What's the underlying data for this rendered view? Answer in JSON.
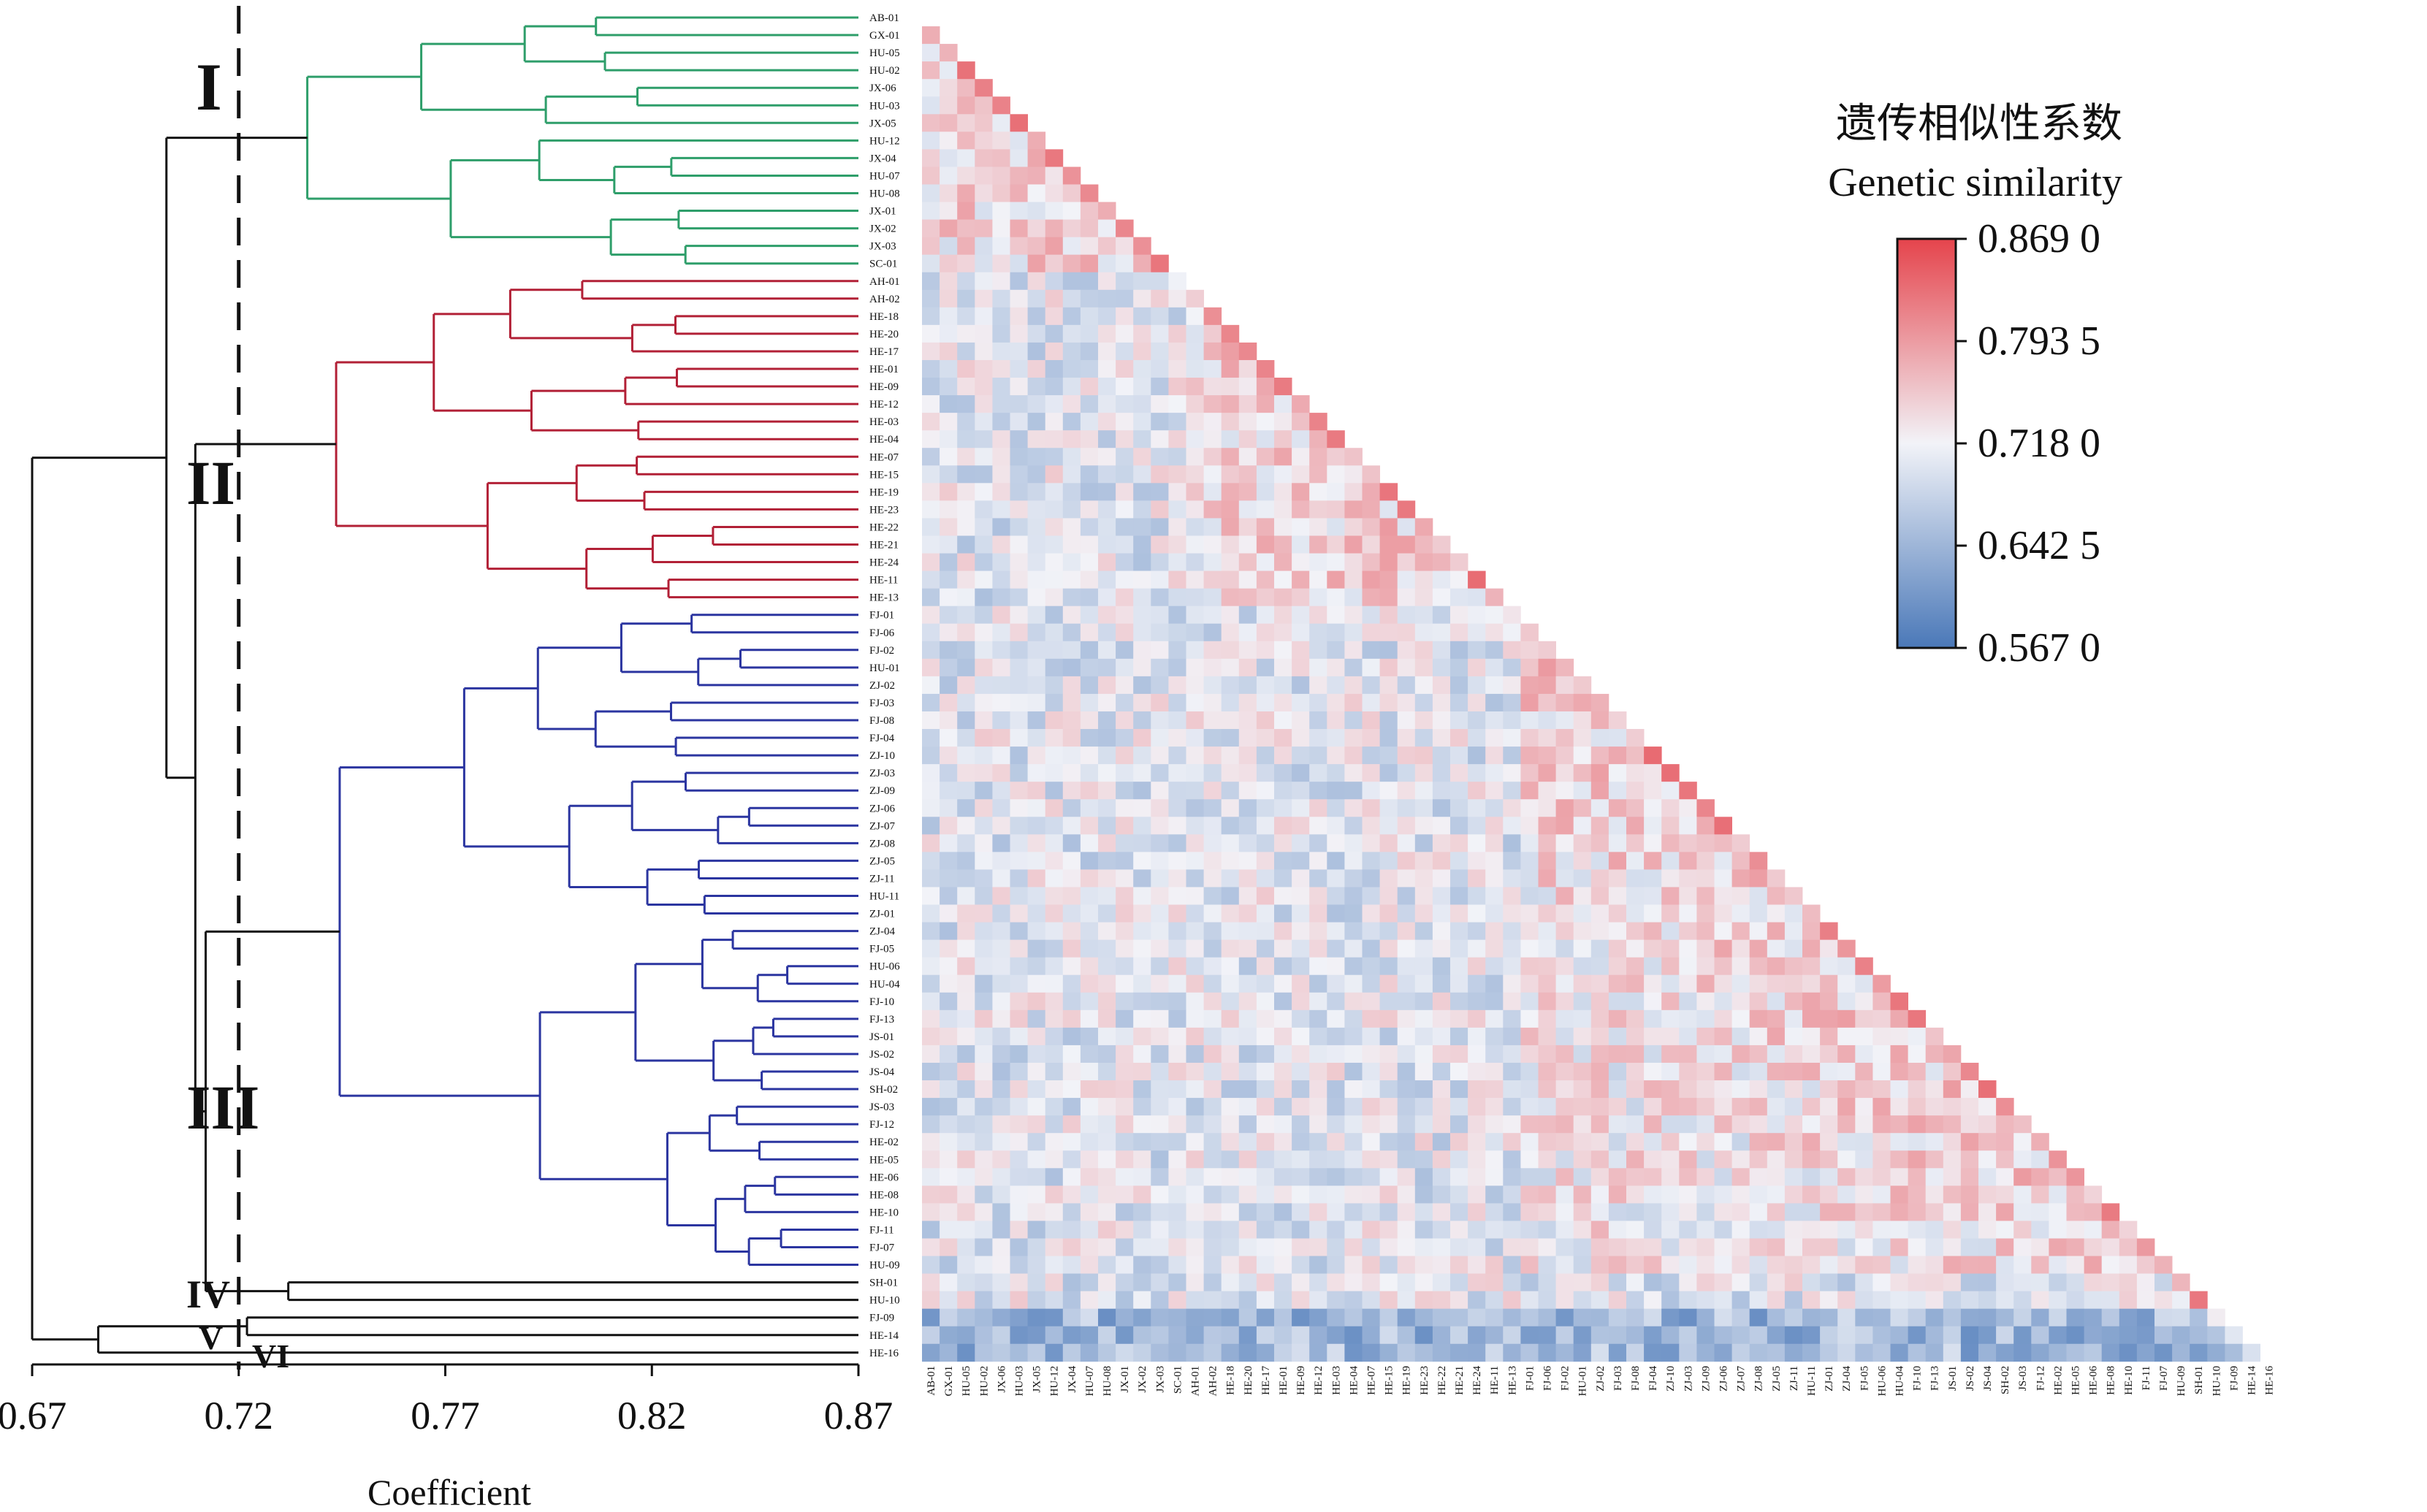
{
  "chart_data": [
    {
      "type": "dendrogram",
      "xlabel": "Coefficient",
      "xlim": [
        0.67,
        0.87
      ],
      "xticks": [
        "0.67",
        "0.72",
        "0.77",
        "0.82",
        "0.87"
      ],
      "cutoff": 0.72,
      "leaves": [
        "AB-01",
        "GX-01",
        "HU-05",
        "HU-02",
        "JX-06",
        "HU-03",
        "JX-05",
        "HU-12",
        "JX-04",
        "HU-07",
        "HU-08",
        "JX-01",
        "JX-02",
        "JX-03",
        "SC-01",
        "AH-01",
        "AH-02",
        "HE-18",
        "HE-20",
        "HE-17",
        "HE-01",
        "HE-09",
        "HE-12",
        "HE-03",
        "HE-04",
        "HE-07",
        "HE-15",
        "HE-19",
        "HE-23",
        "HE-22",
        "HE-21",
        "HE-24",
        "HE-11",
        "HE-13",
        "FJ-01",
        "FJ-06",
        "FJ-02",
        "HU-01",
        "ZJ-02",
        "FJ-03",
        "FJ-08",
        "FJ-04",
        "ZJ-10",
        "ZJ-03",
        "ZJ-09",
        "ZJ-06",
        "ZJ-07",
        "ZJ-08",
        "ZJ-05",
        "ZJ-11",
        "HU-11",
        "ZJ-01",
        "ZJ-04",
        "FJ-05",
        "HU-06",
        "HU-04",
        "FJ-10",
        "FJ-13",
        "JS-01",
        "JS-02",
        "JS-04",
        "SH-02",
        "JS-03",
        "FJ-12",
        "HE-02",
        "HE-05",
        "HE-06",
        "HE-08",
        "HE-10",
        "FJ-11",
        "FJ-07",
        "HU-09",
        "SH-01",
        "HU-10",
        "FJ-09",
        "HE-14",
        "HE-16"
      ],
      "groups": [
        {
          "name": "I",
          "first": 0,
          "last": 14,
          "color": "#2e9e6a"
        },
        {
          "name": "II",
          "first": 15,
          "last": 33,
          "color": "#b22036"
        },
        {
          "name": "III",
          "first": 34,
          "last": 71,
          "color": "#2b35a0"
        },
        {
          "name": "IV",
          "first": 72,
          "last": 73,
          "color": "#111111"
        },
        {
          "name": "V",
          "first": 74,
          "last": 75,
          "color": "#111111"
        },
        {
          "name": "VI",
          "first": 76,
          "last": 76,
          "color": "#111111"
        }
      ]
    },
    {
      "type": "heatmap",
      "layout": "lower-triangle",
      "labels_same_as_dendrogram": true,
      "legend": {
        "title_cn": "遗传相似性系数",
        "title_en": "Genetic similarity",
        "ticks": [
          "0.869 0",
          "0.793 5",
          "0.718 0",
          "0.642 5",
          "0.567 0"
        ],
        "min": 0.567,
        "max": 0.869,
        "mid": 0.718
      },
      "colors": {
        "low": "#4a78b8",
        "mid": "#f2f3f8",
        "high": "#e5444c"
      }
    }
  ]
}
